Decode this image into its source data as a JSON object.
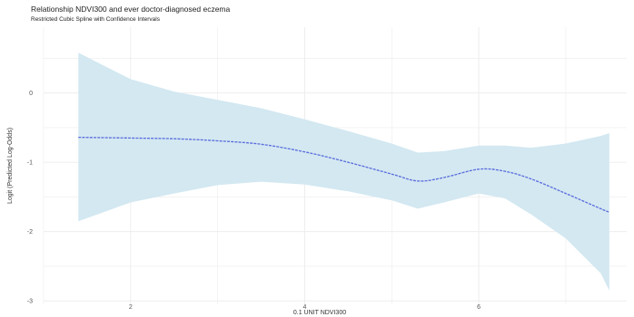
{
  "chart_data": {
    "type": "line",
    "title": "Relationship NDVI300 and ever doctor-diagnosed eczema",
    "subtitle": "Restricted Cubic Spline with Confidence Intervals",
    "xlabel": "0.1 UNIT NDVI300",
    "ylabel": "Logit (Predicted Log-Odds)",
    "xlim": [
      1.0,
      7.7
    ],
    "ylim": [
      -3.05,
      0.95
    ],
    "x_ticks": [
      2,
      4,
      6
    ],
    "y_ticks": [
      0,
      -1,
      -2,
      -3
    ],
    "grid": true,
    "colors": {
      "line": "#5a6bdc",
      "band": "#d3e8f1",
      "grid": "#ececec"
    },
    "series": [
      {
        "x": [
          1.4,
          2.0,
          2.5,
          3.0,
          3.5,
          4.0,
          4.5,
          5.0,
          5.3,
          5.6,
          6.0,
          6.3,
          6.6,
          7.0,
          7.4,
          7.5
        ],
        "y": [
          -0.64,
          -0.65,
          -0.66,
          -0.69,
          -0.74,
          -0.85,
          -1.0,
          -1.17,
          -1.27,
          -1.22,
          -1.1,
          -1.13,
          -1.24,
          -1.45,
          -1.67,
          -1.72
        ],
        "lower": [
          -1.85,
          -1.58,
          -1.45,
          -1.33,
          -1.28,
          -1.32,
          -1.42,
          -1.55,
          -1.67,
          -1.58,
          -1.45,
          -1.52,
          -1.75,
          -2.1,
          -2.6,
          -2.85
        ],
        "upper": [
          0.58,
          0.2,
          0.02,
          -0.1,
          -0.22,
          -0.38,
          -0.55,
          -0.73,
          -0.86,
          -0.84,
          -0.76,
          -0.76,
          -0.79,
          -0.73,
          -0.62,
          -0.58
        ]
      }
    ]
  }
}
